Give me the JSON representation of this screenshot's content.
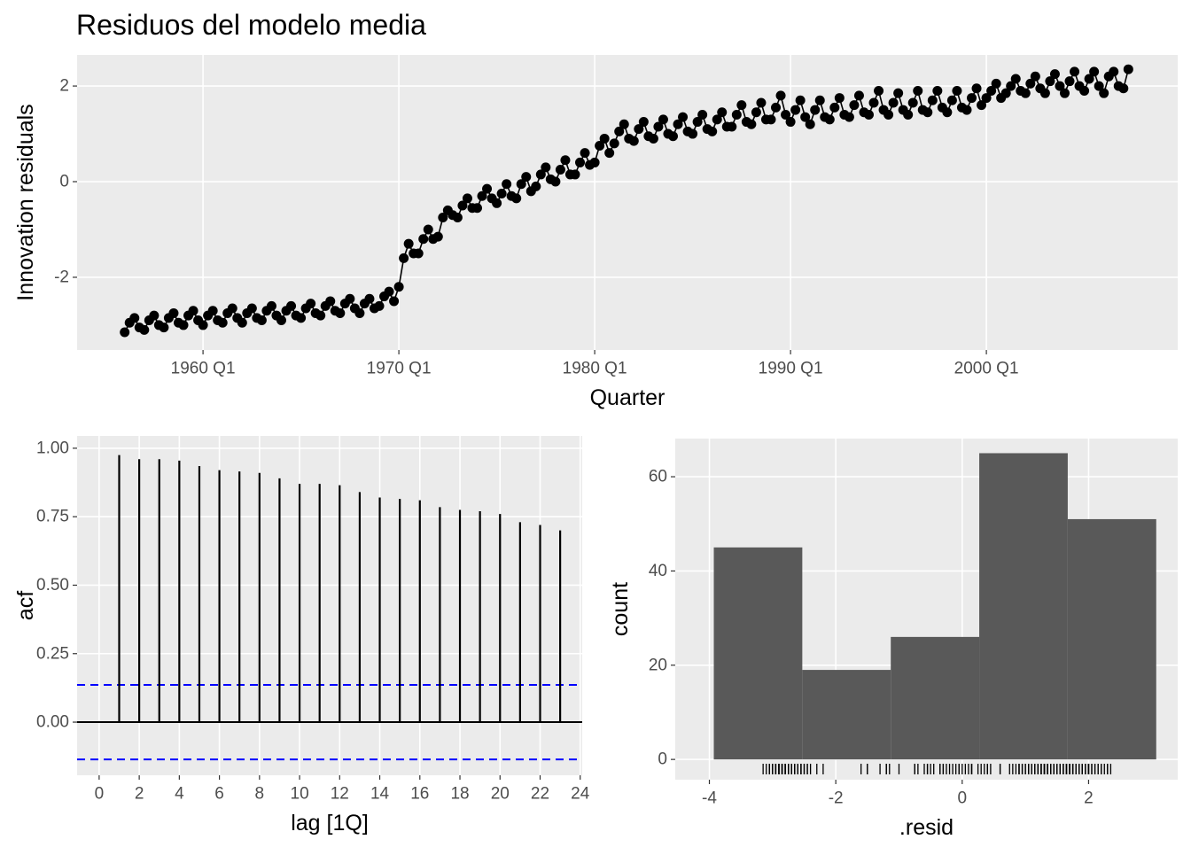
{
  "chart_data": [
    {
      "type": "line",
      "title": "Residuos del modelo media",
      "x_label": "Quarter",
      "y_label": "Innovation residuals",
      "color": "#000000",
      "grid": true,
      "xlim": [
        1953.57,
        2009.77
      ],
      "ylim": [
        -3.52,
        2.65
      ],
      "xticks": [
        {
          "value": 1960,
          "label": "1960 Q1"
        },
        {
          "value": 1970,
          "label": "1970 Q1"
        },
        {
          "value": 1980,
          "label": "1980 Q1"
        },
        {
          "value": 1990,
          "label": "1990 Q1"
        },
        {
          "value": 2000,
          "label": "2000 Q1"
        }
      ],
      "yticks": [
        -2,
        0,
        2
      ],
      "x": [
        1956,
        1956.25,
        1956.5,
        1956.75,
        1957,
        1957.25,
        1957.5,
        1957.75,
        1958,
        1958.25,
        1958.5,
        1958.75,
        1959,
        1959.25,
        1959.5,
        1959.75,
        1960,
        1960.25,
        1960.5,
        1960.75,
        1961,
        1961.25,
        1961.5,
        1961.75,
        1962,
        1962.25,
        1962.5,
        1962.75,
        1963,
        1963.25,
        1963.5,
        1963.75,
        1964,
        1964.25,
        1964.5,
        1964.75,
        1965,
        1965.25,
        1965.5,
        1965.75,
        1966,
        1966.25,
        1966.5,
        1966.75,
        1967,
        1967.25,
        1967.5,
        1967.75,
        1968,
        1968.25,
        1968.5,
        1968.75,
        1969,
        1969.25,
        1969.5,
        1969.75,
        1970,
        1970.25,
        1970.5,
        1970.75,
        1971,
        1971.25,
        1971.5,
        1971.75,
        1972,
        1972.25,
        1972.5,
        1972.75,
        1973,
        1973.25,
        1973.5,
        1973.75,
        1974,
        1974.25,
        1974.5,
        1974.75,
        1975,
        1975.25,
        1975.5,
        1975.75,
        1976,
        1976.25,
        1976.5,
        1976.75,
        1977,
        1977.25,
        1977.5,
        1977.75,
        1978,
        1978.25,
        1978.5,
        1978.75,
        1979,
        1979.25,
        1979.5,
        1979.75,
        1980,
        1980.25,
        1980.5,
        1980.75,
        1981,
        1981.25,
        1981.5,
        1981.75,
        1982,
        1982.25,
        1982.5,
        1982.75,
        1983,
        1983.25,
        1983.5,
        1983.75,
        1984,
        1984.25,
        1984.5,
        1984.75,
        1985,
        1985.25,
        1985.5,
        1985.75,
        1986,
        1986.25,
        1986.5,
        1986.75,
        1987,
        1987.25,
        1987.5,
        1987.75,
        1988,
        1988.25,
        1988.5,
        1988.75,
        1989,
        1989.25,
        1989.5,
        1989.75,
        1990,
        1990.25,
        1990.5,
        1990.75,
        1991,
        1991.25,
        1991.5,
        1991.75,
        1992,
        1992.25,
        1992.5,
        1992.75,
        1993,
        1993.25,
        1993.5,
        1993.75,
        1994,
        1994.25,
        1994.5,
        1994.75,
        1995,
        1995.25,
        1995.5,
        1995.75,
        1996,
        1996.25,
        1996.5,
        1996.75,
        1997,
        1997.25,
        1997.5,
        1997.75,
        1998,
        1998.25,
        1998.5,
        1998.75,
        1999,
        1999.25,
        1999.5,
        1999.75,
        2000,
        2000.25,
        2000.5,
        2000.75,
        2001,
        2001.25,
        2001.5,
        2001.75,
        2002,
        2002.25,
        2002.5,
        2002.75,
        2003,
        2003.25,
        2003.5,
        2003.75,
        2004,
        2004.25,
        2004.5,
        2004.75,
        2005,
        2005.25,
        2005.5,
        2005.75,
        2006,
        2006.25,
        2006.5,
        2006.75,
        2007,
        2007.25
      ],
      "values": [
        -3.15,
        -2.95,
        -2.85,
        -3.05,
        -3.1,
        -2.9,
        -2.8,
        -3.0,
        -3.05,
        -2.85,
        -2.75,
        -2.95,
        -3.0,
        -2.8,
        -2.7,
        -2.9,
        -3.0,
        -2.8,
        -2.7,
        -2.9,
        -2.95,
        -2.75,
        -2.65,
        -2.85,
        -2.95,
        -2.75,
        -2.65,
        -2.85,
        -2.9,
        -2.7,
        -2.6,
        -2.8,
        -2.9,
        -2.7,
        -2.6,
        -2.8,
        -2.85,
        -2.65,
        -2.55,
        -2.75,
        -2.8,
        -2.6,
        -2.5,
        -2.7,
        -2.75,
        -2.55,
        -2.45,
        -2.65,
        -2.75,
        -2.55,
        -2.45,
        -2.65,
        -2.6,
        -2.4,
        -2.3,
        -2.5,
        -2.2,
        -1.6,
        -1.3,
        -1.5,
        -1.5,
        -1.2,
        -1.0,
        -1.2,
        -1.15,
        -0.75,
        -0.6,
        -0.7,
        -0.75,
        -0.5,
        -0.35,
        -0.55,
        -0.55,
        -0.3,
        -0.15,
        -0.35,
        -0.45,
        -0.25,
        -0.05,
        -0.3,
        -0.35,
        -0.05,
        0.1,
        -0.2,
        -0.1,
        0.15,
        0.3,
        0.05,
        0.0,
        0.25,
        0.45,
        0.15,
        0.15,
        0.4,
        0.6,
        0.35,
        0.4,
        0.75,
        0.9,
        0.6,
        0.8,
        1.05,
        1.2,
        0.9,
        0.85,
        1.1,
        1.25,
        0.95,
        0.9,
        1.15,
        1.3,
        1.0,
        0.95,
        1.2,
        1.35,
        1.05,
        1.0,
        1.25,
        1.4,
        1.1,
        1.05,
        1.3,
        1.45,
        1.15,
        1.15,
        1.4,
        1.6,
        1.25,
        1.2,
        1.45,
        1.65,
        1.3,
        1.3,
        1.55,
        1.8,
        1.4,
        1.25,
        1.5,
        1.7,
        1.35,
        1.2,
        1.5,
        1.7,
        1.35,
        1.3,
        1.55,
        1.75,
        1.4,
        1.35,
        1.6,
        1.8,
        1.45,
        1.4,
        1.65,
        1.9,
        1.5,
        1.4,
        1.65,
        1.85,
        1.5,
        1.4,
        1.65,
        1.9,
        1.5,
        1.45,
        1.7,
        1.9,
        1.55,
        1.45,
        1.7,
        1.9,
        1.55,
        1.5,
        1.75,
        1.95,
        1.6,
        1.75,
        1.9,
        2.05,
        1.75,
        1.85,
        2.0,
        2.15,
        1.9,
        1.85,
        2.05,
        2.2,
        1.95,
        1.85,
        2.1,
        2.25,
        2.0,
        1.85,
        2.1,
        2.3,
        2.0,
        1.9,
        2.15,
        2.3,
        2.0,
        1.85,
        2.2,
        2.3,
        2.0,
        1.95,
        2.35
      ]
    },
    {
      "type": "acf",
      "x_label": "lag [1Q]",
      "y_label": "acf",
      "color": "#000000",
      "ci_color": "#0000ff",
      "grid": true,
      "xlim": [
        -1.1,
        24.1
      ],
      "ylim": [
        -0.194,
        1.045
      ],
      "xticks": [
        0,
        2,
        4,
        6,
        8,
        10,
        12,
        14,
        16,
        18,
        20,
        22,
        24
      ],
      "yticks": [
        {
          "value": 0,
          "label": "0.00"
        },
        0.25,
        {
          "value": 0.5,
          "label": "0.50"
        },
        0.75,
        {
          "value": 1,
          "label": "1.00"
        }
      ],
      "x": [
        1,
        2,
        3,
        4,
        5,
        6,
        7,
        8,
        9,
        10,
        11,
        12,
        13,
        14,
        15,
        16,
        17,
        18,
        19,
        20,
        21,
        22,
        23
      ],
      "values": [
        0.975,
        0.96,
        0.96,
        0.955,
        0.935,
        0.92,
        0.915,
        0.91,
        0.89,
        0.87,
        0.87,
        0.865,
        0.84,
        0.82,
        0.815,
        0.81,
        0.785,
        0.775,
        0.77,
        0.76,
        0.73,
        0.72,
        0.7
      ],
      "ci": [
        -0.136,
        0.136
      ]
    },
    {
      "type": "histogram",
      "x_label": ".resid",
      "y_label": "count",
      "color": "#595959",
      "grid": true,
      "rug": true,
      "xlim": [
        -4.54,
        3.41
      ],
      "ylim": [
        -4.3,
        68.1
      ],
      "xticks": [
        -4,
        -2,
        0,
        2
      ],
      "yticks": [
        0,
        20,
        40,
        60
      ],
      "bins": [
        -3.93,
        -2.53,
        -1.13,
        0.27,
        1.67,
        3.07
      ],
      "values": [
        45,
        19,
        26,
        65,
        51
      ]
    }
  ]
}
